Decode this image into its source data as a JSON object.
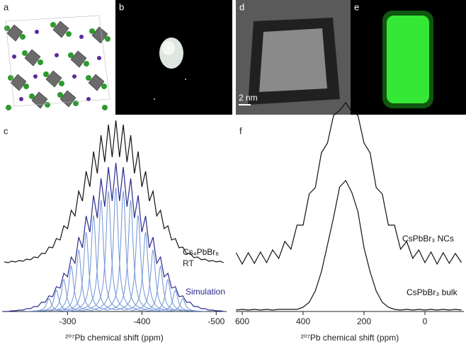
{
  "panels": [
    {
      "label": "a"
    },
    {
      "label": "b"
    },
    {
      "label": "d",
      "scale_bar": "2 nm"
    },
    {
      "label": "e"
    }
  ],
  "chart_data": [
    {
      "type": "line",
      "label": "c",
      "xlabel": "²⁰⁷Pb chemical shift (ppm)",
      "xlim": [
        -212,
        -514
      ],
      "ylim": [
        0,
        2.75
      ],
      "xticks": [
        -300,
        -400,
        -500
      ],
      "x": [
        -215,
        -220,
        -225,
        -230,
        -235,
        -240,
        -245,
        -250,
        -255,
        -260,
        -265,
        -270,
        -275,
        -280,
        -285,
        -290,
        -295,
        -300,
        -305,
        -310,
        -315,
        -320,
        -325,
        -330,
        -335,
        -340,
        -345,
        -350,
        -355,
        -360,
        -365,
        -370,
        -375,
        -380,
        -385,
        -390,
        -395,
        -400,
        -405,
        -410,
        -415,
        -420,
        -425,
        -430,
        -435,
        -440,
        -445,
        -450,
        -455,
        -460,
        -465,
        -470,
        -475,
        -480,
        -485,
        -490,
        -495,
        -500,
        -505,
        -510
      ],
      "series": [
        {
          "name": "Cs₄PbBr₆",
          "annotation": "RT",
          "color": "#111111",
          "values": [
            0.7,
            0.69,
            0.71,
            0.7,
            0.72,
            0.71,
            0.74,
            0.73,
            0.77,
            0.76,
            0.82,
            0.82,
            0.91,
            0.9,
            1.03,
            1.01,
            1.21,
            1.17,
            1.43,
            1.35,
            1.7,
            1.56,
            1.98,
            1.76,
            2.26,
            1.95,
            2.49,
            2.11,
            2.64,
            2.18,
            2.7,
            2.18,
            2.64,
            2.11,
            2.49,
            1.95,
            2.26,
            1.76,
            1.98,
            1.56,
            1.7,
            1.35,
            1.43,
            1.17,
            1.21,
            1.01,
            1.03,
            0.9,
            0.91,
            0.82,
            0.82,
            0.76,
            0.77,
            0.73,
            0.74,
            0.71,
            0.72,
            0.7,
            0.71,
            0.69
          ]
        },
        {
          "name": "Simulation",
          "color": "#2a2a90",
          "values": [
            0,
            0,
            0.01,
            0.01,
            0.02,
            0.02,
            0.04,
            0.04,
            0.07,
            0.07,
            0.13,
            0.13,
            0.22,
            0.21,
            0.35,
            0.33,
            0.54,
            0.49,
            0.77,
            0.68,
            1.05,
            0.9,
            1.35,
            1.12,
            1.64,
            1.32,
            1.88,
            1.48,
            2.04,
            1.56,
            2.1,
            1.56,
            2.04,
            1.48,
            1.88,
            1.32,
            1.64,
            1.12,
            1.35,
            0.9,
            1.05,
            0.68,
            0.77,
            0.49,
            0.54,
            0.33,
            0.35,
            0.21,
            0.22,
            0.13,
            0.13,
            0.07,
            0.07,
            0.04,
            0.04,
            0.02,
            0.02,
            0.01,
            0.01,
            0
          ]
        }
      ],
      "components": {
        "color": "#6f93d6",
        "x": [
          -275,
          -285,
          -295,
          -305,
          -315,
          -325,
          -335,
          -345,
          -355,
          -365,
          -375,
          -385,
          -395,
          -405,
          -415,
          -425,
          -435,
          -445,
          -455
        ],
        "values": [
          0.18,
          0.3,
          0.45,
          0.64,
          0.87,
          1.12,
          1.36,
          1.57,
          1.7,
          1.75,
          1.7,
          1.57,
          1.36,
          1.12,
          0.87,
          0.64,
          0.45,
          0.3,
          0.18
        ]
      }
    },
    {
      "type": "line",
      "label": "f",
      "xlabel": "²⁰⁷Pb chemical shift (ppm)",
      "xlim": [
        621,
        -128
      ],
      "ylim": [
        0,
        3
      ],
      "xticks": [
        600,
        400,
        200,
        0
      ],
      "x": [
        620,
        600,
        580,
        560,
        540,
        520,
        500,
        480,
        460,
        440,
        420,
        400,
        380,
        360,
        340,
        320,
        300,
        280,
        260,
        240,
        220,
        200,
        180,
        160,
        140,
        120,
        100,
        80,
        60,
        40,
        20,
        0,
        -20,
        -40,
        -60,
        -80,
        -100,
        -120
      ],
      "series": [
        {
          "name": "CsPbBr₃ NCs",
          "color": "#111111",
          "values": [
            0.83,
            0.67,
            0.83,
            0.68,
            0.84,
            0.69,
            0.87,
            0.75,
            0.99,
            0.88,
            1.22,
            1.22,
            1.66,
            1.75,
            2.24,
            2.38,
            2.77,
            2.84,
            2.95,
            2.82,
            2.77,
            2.38,
            2.24,
            1.75,
            1.66,
            1.22,
            1.22,
            0.88,
            0.99,
            0.75,
            0.87,
            0.69,
            0.84,
            0.67,
            0.83,
            0.68,
            0.82,
            0.69
          ]
        },
        {
          "name": "CsPbBr₃ bulk",
          "color": "#111111",
          "values": [
            0.02,
            0.03,
            0.02,
            0.03,
            0.02,
            0.03,
            0.02,
            0.03,
            0.03,
            0.03,
            0.03,
            0.06,
            0.13,
            0.29,
            0.56,
            0.94,
            1.33,
            1.76,
            1.85,
            1.68,
            1.41,
            0.9,
            0.56,
            0.29,
            0.13,
            0.06,
            0.03,
            0.02,
            0.03,
            0.02,
            0.03,
            0.02,
            0.03,
            0.02,
            0.03,
            0.02,
            0.03,
            0.02
          ]
        }
      ]
    }
  ]
}
